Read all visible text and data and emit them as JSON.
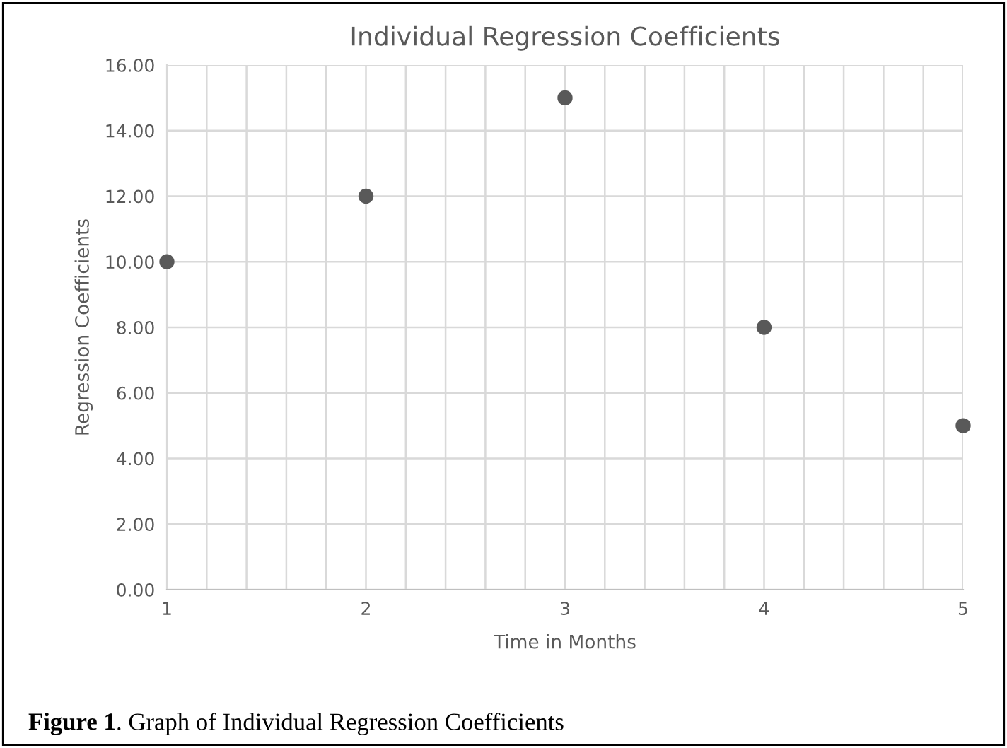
{
  "chart_data": {
    "type": "scatter",
    "title": "Individual Regression Coefficients",
    "xlabel": "Time in Months",
    "ylabel": "Regression Coefficients",
    "x": [
      1,
      2,
      3,
      4,
      5
    ],
    "series": [
      {
        "color": "#595959",
        "values": [
          10,
          12,
          15,
          8,
          5
        ]
      }
    ],
    "marker": "circle",
    "xlim": [
      1,
      5
    ],
    "xticks": [
      1,
      {
        "value": 1.2,
        "label": null
      },
      {
        "value": 1.4,
        "label": null
      },
      {
        "value": 1.6,
        "label": null
      },
      {
        "value": 1.8,
        "label": null
      },
      2,
      {
        "value": 2.2,
        "label": null
      },
      {
        "value": 2.4,
        "label": null
      },
      {
        "value": 2.6,
        "label": null
      },
      {
        "value": 2.8,
        "label": null
      },
      3,
      {
        "value": 3.2,
        "label": null
      },
      {
        "value": 3.4,
        "label": null
      },
      {
        "value": 3.6,
        "label": null
      },
      {
        "value": 3.8,
        "label": null
      },
      4,
      {
        "value": 4.2,
        "label": null
      },
      {
        "value": 4.4,
        "label": null
      },
      {
        "value": 4.6,
        "label": null
      },
      {
        "value": 4.8,
        "label": null
      },
      5
    ],
    "ylim": [
      0,
      16
    ],
    "yticks": [
      {
        "value": 0,
        "label": "0.00"
      },
      {
        "value": 2,
        "label": "2.00"
      },
      {
        "value": 4,
        "label": "4.00"
      },
      {
        "value": 6,
        "label": "6.00"
      },
      {
        "value": 8,
        "label": "8.00"
      },
      {
        "value": 10,
        "label": "10.00"
      },
      {
        "value": 12,
        "label": "12.00"
      },
      {
        "value": 14,
        "label": "14.00"
      },
      {
        "value": 16,
        "label": "16.00"
      }
    ],
    "grid": true,
    "annotations": [
      "Figure 1",
      ". Graph of Individual Regression Coefficients"
    ]
  }
}
